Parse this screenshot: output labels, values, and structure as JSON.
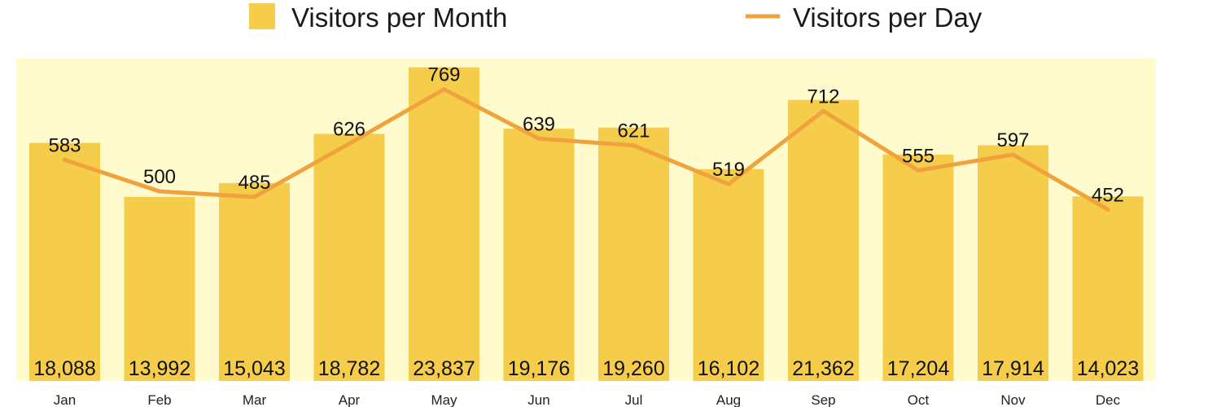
{
  "chart_data": {
    "type": "bar",
    "categories": [
      "Jan",
      "Feb",
      "Mar",
      "Apr",
      "May",
      "Jun",
      "Jul",
      "Aug",
      "Sep",
      "Oct",
      "Nov",
      "Dec"
    ],
    "series": [
      {
        "name": "Visitors per Month",
        "kind": "bar",
        "color": "#f6cd4a",
        "values": [
          18088,
          13992,
          15043,
          18782,
          23837,
          19176,
          19260,
          16102,
          21362,
          17204,
          17914,
          14023
        ],
        "labels": [
          "18,088",
          "13,992",
          "15,043",
          "18,782",
          "23,837",
          "19,176",
          "19,260",
          "16,102",
          "21,362",
          "17,204",
          "17,914",
          "14,023"
        ]
      },
      {
        "name": "Visitors per Day",
        "kind": "line",
        "color": "#f0a23c",
        "values": [
          583,
          500,
          485,
          626,
          769,
          639,
          621,
          519,
          712,
          555,
          597,
          452
        ],
        "labels": [
          "583",
          "500",
          "485",
          "626",
          "769",
          "639",
          "621",
          "519",
          "712",
          "555",
          "597",
          "452"
        ]
      }
    ],
    "title": "",
    "xlabel": "",
    "ylabel": "",
    "plot_background": "#fffbcc",
    "legend_position": "top",
    "grid": false,
    "bar_axis_range": [
      0,
      24500
    ],
    "line_axis_range": [
      0,
      850
    ]
  }
}
